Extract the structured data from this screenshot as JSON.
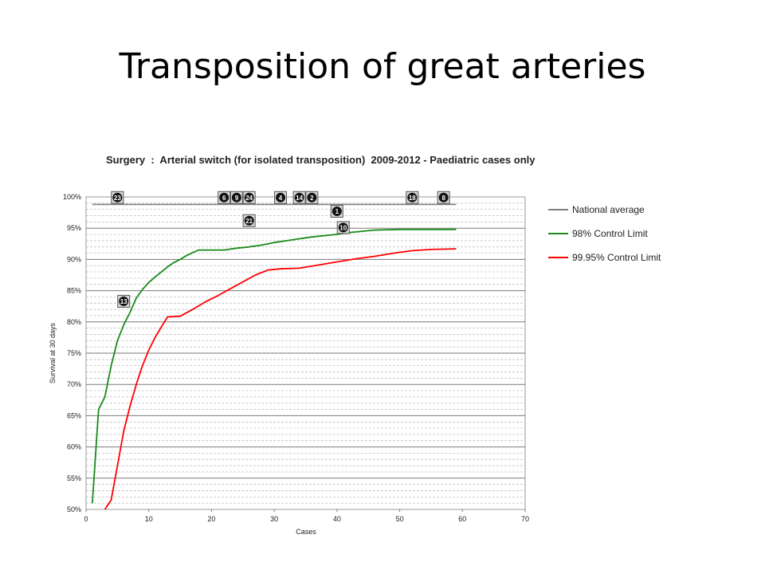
{
  "slide": {
    "title": "Transposition of great arteries"
  },
  "chart_data": {
    "type": "line",
    "title": "Surgery  :  Arterial switch (for isolated transposition)  2009-2012 - Paediatric cases only",
    "xlabel": "Cases",
    "ylabel": "Survival at 30 days",
    "xlim": [
      0,
      70
    ],
    "ylim": [
      50,
      100
    ],
    "x_ticks": [
      "0",
      "10",
      "20",
      "30",
      "40",
      "50",
      "60",
      "70"
    ],
    "y_ticks": [
      "50%",
      "55%",
      "60%",
      "65%",
      "70%",
      "75%",
      "80%",
      "85%",
      "90%",
      "95%",
      "100%"
    ],
    "grid": true,
    "legend_position": "right",
    "series": [
      {
        "name": "National average",
        "color": "#808080",
        "x": [
          1,
          59
        ],
        "y": [
          98.8,
          98.8
        ]
      },
      {
        "name": "98% Control Limit",
        "color": "#1a8a1a",
        "x": [
          1,
          2,
          3,
          4,
          5,
          6,
          7,
          8,
          9,
          10,
          11,
          12,
          13,
          14,
          15,
          16,
          17,
          18,
          20,
          22,
          24,
          26,
          28,
          30,
          32,
          34,
          36,
          38,
          40,
          42,
          44,
          46,
          50,
          55,
          59
        ],
        "y": [
          51,
          66,
          68,
          73,
          77,
          79.5,
          81.5,
          83.8,
          85.2,
          86.3,
          87.2,
          88,
          88.8,
          89.5,
          90,
          90.6,
          91.1,
          91.5,
          91.5,
          91.5,
          91.8,
          92,
          92.3,
          92.7,
          93,
          93.3,
          93.6,
          93.8,
          94,
          94.3,
          94.5,
          94.7,
          94.8,
          94.8,
          94.8
        ]
      },
      {
        "name": "99.95% Control Limit",
        "color": "#ff0000",
        "x": [
          3,
          4,
          5,
          6,
          7,
          8,
          9,
          10,
          11,
          12,
          13,
          15,
          17,
          19,
          21,
          23,
          25,
          27,
          29,
          31,
          34,
          37,
          40,
          43,
          46,
          49,
          52,
          55,
          59
        ],
        "y": [
          50,
          51.5,
          57,
          62.5,
          66.5,
          70,
          73,
          75.5,
          77.5,
          79.2,
          80.8,
          80.9,
          82,
          83.2,
          84.2,
          85.3,
          86.4,
          87.5,
          88.3,
          88.5,
          88.6,
          89.1,
          89.6,
          90.1,
          90.5,
          91,
          91.4,
          91.6,
          91.7
        ]
      }
    ],
    "markers": [
      {
        "label": "23",
        "x": 5,
        "y": 99.9
      },
      {
        "label": "6",
        "x": 22,
        "y": 99.9
      },
      {
        "label": "9",
        "x": 24,
        "y": 99.9
      },
      {
        "label": "24",
        "x": 26,
        "y": 99.9
      },
      {
        "label": "4",
        "x": 31,
        "y": 99.9
      },
      {
        "label": "14",
        "x": 34,
        "y": 99.9
      },
      {
        "label": "2",
        "x": 36,
        "y": 99.9
      },
      {
        "label": "18",
        "x": 52,
        "y": 99.9
      },
      {
        "label": "8",
        "x": 57,
        "y": 99.9
      },
      {
        "label": "1",
        "x": 40,
        "y": 97.7
      },
      {
        "label": "21",
        "x": 26,
        "y": 96.2
      },
      {
        "label": "10",
        "x": 41,
        "y": 95.1
      },
      {
        "label": "13",
        "x": 6,
        "y": 83.3
      }
    ]
  }
}
